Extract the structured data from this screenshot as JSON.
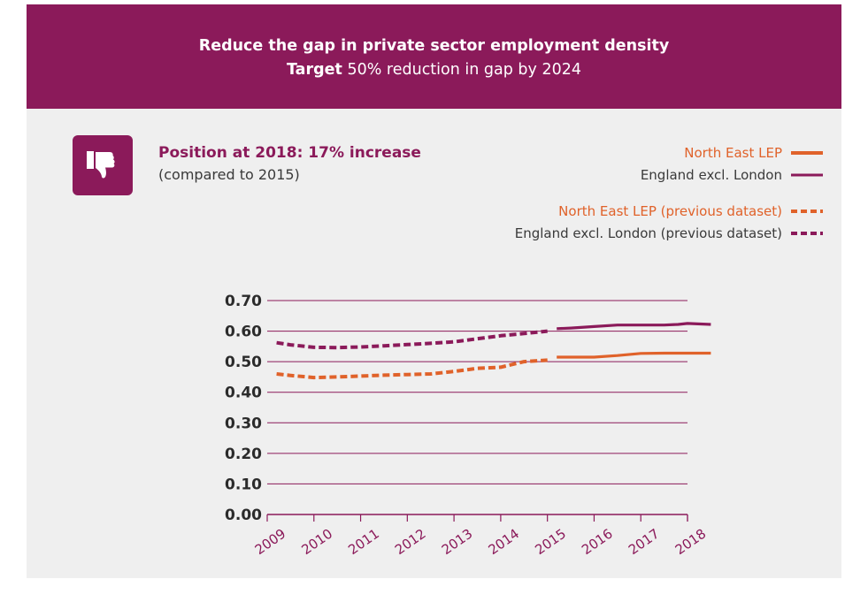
{
  "header": {
    "title": "Reduce the gap in private sector employment density",
    "target_label": "Target",
    "target_text": " 50% reduction in gap by 2024"
  },
  "position": {
    "title": "Position at 2018: 17% increase",
    "subtitle": "(compared to 2015)",
    "icon": "thumbs-down-icon"
  },
  "legend": [
    {
      "label": "North East LEP",
      "color": "#e0622a",
      "style": "solid"
    },
    {
      "label": "England excl. London",
      "color": "#8b1a5a",
      "style": "solid"
    },
    {
      "label": "North East LEP (previous dataset)",
      "color": "#e0622a",
      "style": "dashed"
    },
    {
      "label": "England excl. London (previous dataset)",
      "color": "#8b1a5a",
      "style": "dashed"
    }
  ],
  "colors": {
    "accent": "#8b1a5a",
    "orange": "#e0622a",
    "panel": "#efefef"
  },
  "chart_data": {
    "type": "line",
    "title": "",
    "xlabel": "",
    "ylabel": "",
    "categories": [
      "2009",
      "2010",
      "2011",
      "2012",
      "2013",
      "2014",
      "2015",
      "2016",
      "2017",
      "2018"
    ],
    "ylim": [
      0,
      0.7
    ],
    "yticks": [
      "0.00",
      "0.10",
      "0.20",
      "0.30",
      "0.40",
      "0.50",
      "0.60",
      "0.70"
    ],
    "grid": true,
    "legend_position": "top-right",
    "series": [
      {
        "name": "North East LEP (previous dataset)",
        "color": "#e0622a",
        "dashed": true,
        "x": [
          2009.2,
          2009.5,
          2010.0,
          2010.5,
          2011.0,
          2011.5,
          2012.0,
          2012.5,
          2013.0,
          2013.5,
          2014.0,
          2014.5,
          2015.0
        ],
        "values": [
          0.46,
          0.455,
          0.448,
          0.45,
          0.453,
          0.456,
          0.458,
          0.46,
          0.468,
          0.478,
          0.482,
          0.5,
          0.505
        ]
      },
      {
        "name": "England excl. London (previous dataset)",
        "color": "#8b1a5a",
        "dashed": true,
        "x": [
          2009.2,
          2009.5,
          2010.0,
          2010.5,
          2011.0,
          2011.5,
          2012.0,
          2012.5,
          2013.0,
          2013.5,
          2014.0,
          2014.5,
          2015.0
        ],
        "values": [
          0.562,
          0.555,
          0.547,
          0.546,
          0.548,
          0.552,
          0.556,
          0.56,
          0.565,
          0.575,
          0.585,
          0.592,
          0.6
        ]
      },
      {
        "name": "North East LEP",
        "color": "#e0622a",
        "dashed": false,
        "x": [
          2015.2,
          2015.5,
          2016.0,
          2016.5,
          2017.0,
          2017.5,
          2018.0,
          2018.5
        ],
        "values": [
          0.515,
          0.515,
          0.515,
          0.52,
          0.527,
          0.528,
          0.528,
          0.528
        ]
      },
      {
        "name": "England excl. London",
        "color": "#8b1a5a",
        "dashed": false,
        "x": [
          2015.2,
          2015.5,
          2016.0,
          2016.5,
          2017.0,
          2017.5,
          2017.8,
          2018.0,
          2018.5
        ],
        "values": [
          0.608,
          0.61,
          0.615,
          0.62,
          0.62,
          0.62,
          0.622,
          0.625,
          0.622
        ]
      }
    ]
  }
}
